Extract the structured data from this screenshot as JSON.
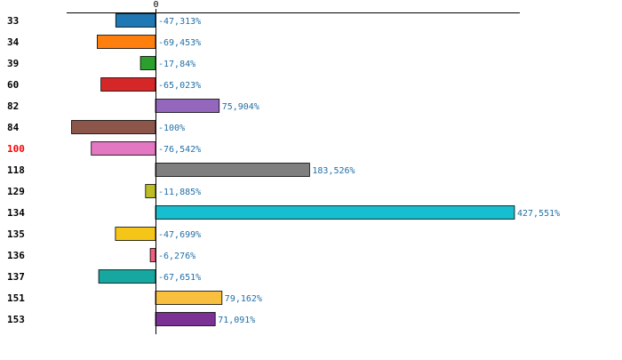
{
  "chart_data": {
    "type": "bar",
    "orientation": "horizontal",
    "categories": [
      "33",
      "34",
      "39",
      "60",
      "82",
      "84",
      "100",
      "118",
      "129",
      "134",
      "135",
      "136",
      "137",
      "151",
      "153"
    ],
    "values": [
      -47.313,
      -69.453,
      -17.84,
      -65.023,
      75.904,
      -100,
      -76.542,
      183.526,
      -11.885,
      427.551,
      -47.699,
      -6.276,
      -67.651,
      79.162,
      71.091
    ],
    "value_labels": [
      "-47,313%",
      "-69,453%",
      "-17,84%",
      "-65,023%",
      "75,904%",
      "-100%",
      "-76,542%",
      "183,526%",
      "-11,885%",
      "427,551%",
      "-47,699%",
      "-6,276%",
      "-67,651%",
      "79,162%",
      "71,091%"
    ],
    "bar_colors": [
      "#1f77b4",
      "#ff7f0e",
      "#2ca02c",
      "#d62728",
      "#9467bd",
      "#8c564b",
      "#e377c2",
      "#7f7f7f",
      "#bcbd22",
      "#17becf",
      "#f5c518",
      "#f06080",
      "#16a8a0",
      "#f9c040",
      "#7b3294"
    ],
    "highlight_category": "100",
    "highlight_color": "#ff0000",
    "label_color": "#1f6fa8",
    "xlim": [
      -100,
      430
    ],
    "x_ticks": [
      0
    ],
    "x_tick_labels": [
      "0"
    ],
    "grid": false,
    "title": "",
    "xlabel": "",
    "ylabel": ""
  }
}
